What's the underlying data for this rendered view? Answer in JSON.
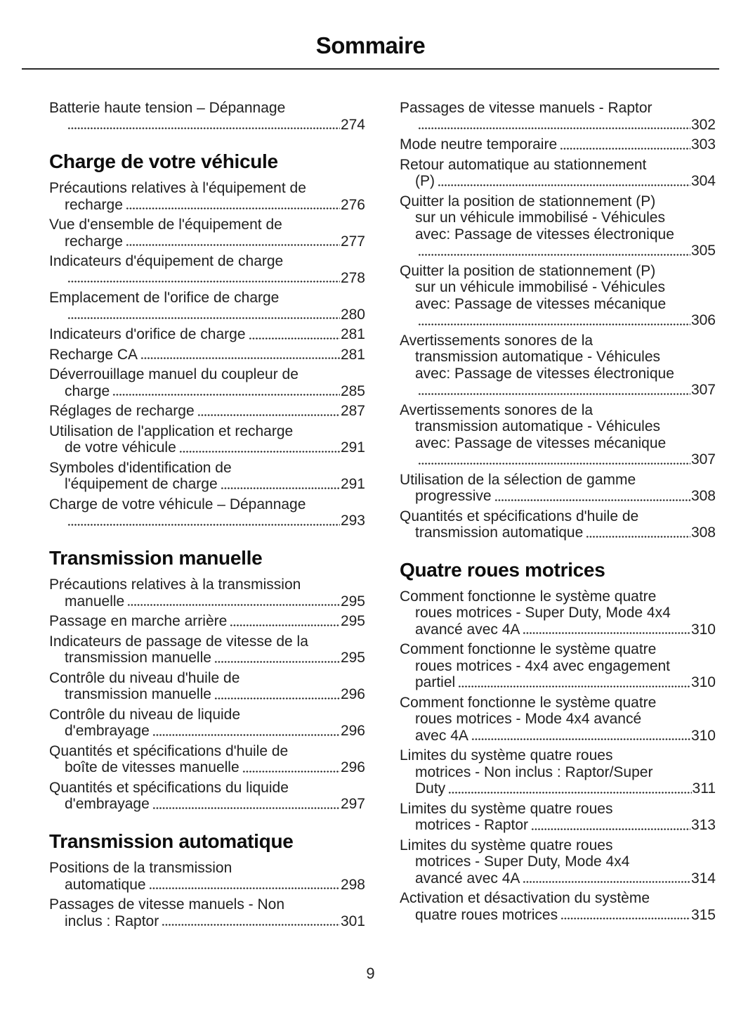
{
  "page": {
    "title": "Sommaire",
    "page_number": "9"
  },
  "colors": {
    "text": "#1f1f1f",
    "heading": "#0d0d0d",
    "rule": "#2a2a2a"
  },
  "toc": {
    "columns": [
      {
        "name": "left",
        "blocks": [
          {
            "type": "entries",
            "items": [
              {
                "pre": [
                  "Batterie haute tension – Dépannage"
                ],
                "last": "",
                "page": "274"
              }
            ]
          },
          {
            "type": "heading",
            "text": "Charge de votre véhicule"
          },
          {
            "type": "entries",
            "items": [
              {
                "pre": [
                  "Précautions relatives à l'équipement de"
                ],
                "last": "recharge",
                "page": "276"
              },
              {
                "pre": [
                  "Vue d'ensemble de l'équipement de"
                ],
                "last": "recharge",
                "page": "277"
              },
              {
                "pre": [
                  "Indicateurs d'équipement de charge"
                ],
                "last": "",
                "page": "278"
              },
              {
                "pre": [
                  "Emplacement de l'orifice de charge"
                ],
                "last": "",
                "page": "280"
              },
              {
                "pre": [],
                "last": "Indicateurs d'orifice de charge",
                "page": "281"
              },
              {
                "pre": [],
                "last": "Recharge CA",
                "page": "281"
              },
              {
                "pre": [
                  "Déverrouillage manuel du coupleur de"
                ],
                "last": "charge",
                "page": "285"
              },
              {
                "pre": [],
                "last": "Réglages de recharge",
                "page": "287"
              },
              {
                "pre": [
                  "Utilisation de l'application et recharge"
                ],
                "last": "de votre véhicule",
                "page": "291"
              },
              {
                "pre": [
                  "Symboles d'identification de"
                ],
                "last": "l'équipement de charge",
                "page": "291"
              },
              {
                "pre": [
                  "Charge de votre véhicule – Dépannage"
                ],
                "last": "",
                "page": "293"
              }
            ]
          },
          {
            "type": "heading",
            "text": "Transmission manuelle"
          },
          {
            "type": "entries",
            "items": [
              {
                "pre": [
                  "Précautions relatives à la transmission"
                ],
                "last": "manuelle",
                "page": "295"
              },
              {
                "pre": [],
                "last": "Passage en marche arrière",
                "page": "295"
              },
              {
                "pre": [
                  "Indicateurs de passage de vitesse de la"
                ],
                "last": "transmission manuelle",
                "page": "295"
              },
              {
                "pre": [
                  "Contrôle du niveau d'huile de"
                ],
                "last": "transmission manuelle",
                "page": "296"
              },
              {
                "pre": [
                  "Contrôle du niveau de liquide"
                ],
                "last": "d'embrayage",
                "page": "296"
              },
              {
                "pre": [
                  "Quantités et spécifications d'huile de"
                ],
                "last": "boîte de vitesses manuelle",
                "page": "296"
              },
              {
                "pre": [
                  "Quantités et spécifications du liquide"
                ],
                "last": "d'embrayage",
                "page": "297"
              }
            ]
          },
          {
            "type": "heading",
            "text": "Transmission automatique"
          },
          {
            "type": "entries",
            "items": [
              {
                "pre": [
                  "Positions de la transmission"
                ],
                "last": "automatique",
                "page": "298"
              },
              {
                "pre": [
                  "Passages de vitesse manuels - Non"
                ],
                "last": "inclus : Raptor",
                "page": "301"
              }
            ]
          }
        ]
      },
      {
        "name": "right",
        "blocks": [
          {
            "type": "entries",
            "items": [
              {
                "pre": [
                  "Passages de vitesse manuels - Raptor"
                ],
                "last": "",
                "page": "302"
              },
              {
                "pre": [],
                "last": "Mode neutre temporaire",
                "page": "303"
              },
              {
                "pre": [
                  "Retour automatique au stationnement"
                ],
                "last": "(P)",
                "page": "304"
              },
              {
                "pre": [
                  "Quitter la position de stationnement (P)",
                  "sur un véhicule immobilisé - Véhicules",
                  "avec: Passage de vitesses électronique"
                ],
                "last": "",
                "page": "305"
              },
              {
                "pre": [
                  "Quitter la position de stationnement (P)",
                  "sur un véhicule immobilisé - Véhicules",
                  "avec: Passage de vitesses mécanique"
                ],
                "last": "",
                "page": "306"
              },
              {
                "pre": [
                  "Avertissements sonores de la",
                  "transmission automatique - Véhicules",
                  "avec: Passage de vitesses électronique"
                ],
                "last": "",
                "page": "307"
              },
              {
                "pre": [
                  "Avertissements sonores de la",
                  "transmission automatique - Véhicules",
                  "avec: Passage de vitesses mécanique"
                ],
                "last": "",
                "page": "307"
              },
              {
                "pre": [
                  "Utilisation de la sélection de gamme"
                ],
                "last": "progressive",
                "page": "308"
              },
              {
                "pre": [
                  "Quantités et spécifications d'huile de"
                ],
                "last": "transmission automatique",
                "page": "308"
              }
            ]
          },
          {
            "type": "heading",
            "text": "Quatre roues motrices"
          },
          {
            "type": "entries",
            "items": [
              {
                "pre": [
                  "Comment fonctionne le système quatre",
                  "roues motrices - Super Duty, Mode 4x4"
                ],
                "last": "avancé avec 4A",
                "page": "310"
              },
              {
                "pre": [
                  "Comment fonctionne le système quatre",
                  "roues motrices - 4x4 avec engagement"
                ],
                "last": "partiel",
                "page": "310"
              },
              {
                "pre": [
                  "Comment fonctionne le système quatre",
                  "roues motrices - Mode 4x4 avancé"
                ],
                "last": "avec 4A",
                "page": "310"
              },
              {
                "pre": [
                  "Limites du système quatre roues",
                  "motrices - Non inclus : Raptor/Super"
                ],
                "last": "Duty",
                "page": "311"
              },
              {
                "pre": [
                  "Limites du système quatre roues"
                ],
                "last": "motrices - Raptor",
                "page": "313"
              },
              {
                "pre": [
                  "Limites du système quatre roues",
                  "motrices - Super Duty, Mode 4x4"
                ],
                "last": "avancé avec 4A",
                "page": "314"
              },
              {
                "pre": [
                  "Activation et désactivation du système"
                ],
                "last": "quatre roues motrices",
                "page": "315"
              }
            ]
          }
        ]
      }
    ]
  }
}
